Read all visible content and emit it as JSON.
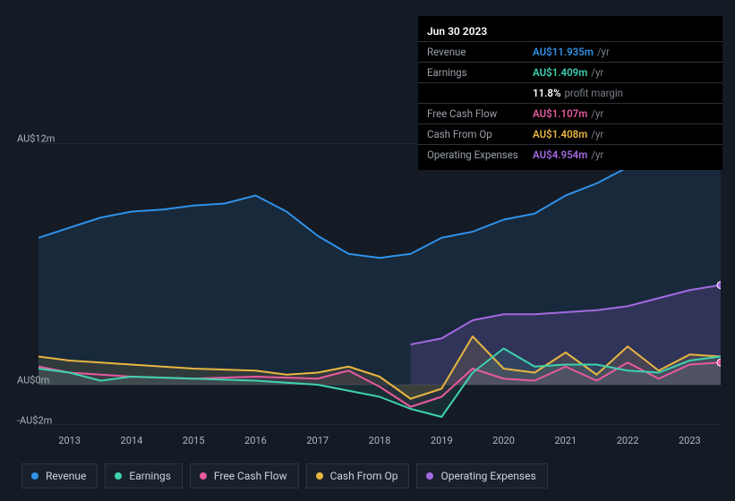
{
  "tooltip": {
    "title": "Jun 30 2023",
    "rows": [
      {
        "label": "Revenue",
        "value": "AU$11.935m",
        "suffix": "/yr",
        "color": "#2f91e8"
      },
      {
        "label": "Earnings",
        "value": "AU$1.409m",
        "suffix": "/yr",
        "color": "#3ed2b0"
      },
      {
        "label": "",
        "value": "11.8%",
        "suffix": "profit margin",
        "color": "#ffffff"
      },
      {
        "label": "Free Cash Flow",
        "value": "AU$1.107m",
        "suffix": "/yr",
        "color": "#e85aa0"
      },
      {
        "label": "Cash From Op",
        "value": "AU$1.408m",
        "suffix": "/yr",
        "color": "#e8b641"
      },
      {
        "label": "Operating Expenses",
        "value": "AU$4.954m",
        "suffix": "/yr",
        "color": "#a369e0"
      }
    ]
  },
  "chart": {
    "type": "area-line",
    "background": "#151b24",
    "grid_color": "#2a303a",
    "text_color": "#b0b5bf",
    "x_start": 2012.5,
    "x_end": 2023.5,
    "y_min": -2,
    "y_max": 12,
    "y_ticks": [
      {
        "v": 12,
        "label": "AU$12m"
      },
      {
        "v": 0,
        "label": "AU$0m"
      },
      {
        "v": -2,
        "label": "-AU$2m"
      }
    ],
    "x_ticks": [
      2013,
      2014,
      2015,
      2016,
      2017,
      2018,
      2019,
      2020,
      2021,
      2022,
      2023
    ],
    "series": [
      {
        "id": "revenue",
        "label": "Revenue",
        "color": "#2f91e8",
        "fill": "rgba(47,145,232,0.12)",
        "width": 2,
        "points": [
          [
            2012.5,
            7.3
          ],
          [
            2013,
            7.8
          ],
          [
            2013.5,
            8.3
          ],
          [
            2014,
            8.6
          ],
          [
            2014.5,
            8.7
          ],
          [
            2015,
            8.9
          ],
          [
            2015.5,
            9.0
          ],
          [
            2016,
            9.4
          ],
          [
            2016.5,
            8.6
          ],
          [
            2017,
            7.4
          ],
          [
            2017.5,
            6.5
          ],
          [
            2018,
            6.3
          ],
          [
            2018.5,
            6.5
          ],
          [
            2019,
            7.3
          ],
          [
            2019.5,
            7.6
          ],
          [
            2020,
            8.2
          ],
          [
            2020.5,
            8.5
          ],
          [
            2021,
            9.4
          ],
          [
            2021.5,
            10.0
          ],
          [
            2022,
            10.8
          ],
          [
            2022.5,
            11.3
          ],
          [
            2023,
            11.6
          ],
          [
            2023.5,
            11.9
          ]
        ]
      },
      {
        "id": "operating_expenses",
        "label": "Operating Expenses",
        "color": "#a369e0",
        "fill": "rgba(163,105,224,0.18)",
        "width": 2,
        "points": [
          [
            2018.5,
            2.0
          ],
          [
            2019,
            2.3
          ],
          [
            2019.5,
            3.2
          ],
          [
            2020,
            3.5
          ],
          [
            2020.5,
            3.5
          ],
          [
            2021,
            3.6
          ],
          [
            2021.5,
            3.7
          ],
          [
            2022,
            3.9
          ],
          [
            2022.5,
            4.3
          ],
          [
            2023,
            4.7
          ],
          [
            2023.5,
            4.95
          ]
        ]
      },
      {
        "id": "cash_from_op",
        "label": "Cash From Op",
        "color": "#e8b641",
        "fill": "rgba(232,182,65,0.12)",
        "width": 2,
        "points": [
          [
            2012.5,
            1.4
          ],
          [
            2013,
            1.2
          ],
          [
            2014,
            1.0
          ],
          [
            2015,
            0.8
          ],
          [
            2016,
            0.7
          ],
          [
            2016.5,
            0.5
          ],
          [
            2017,
            0.6
          ],
          [
            2017.5,
            0.9
          ],
          [
            2018,
            0.4
          ],
          [
            2018.5,
            -0.7
          ],
          [
            2019,
            -0.2
          ],
          [
            2019.5,
            2.4
          ],
          [
            2020,
            0.8
          ],
          [
            2020.5,
            0.6
          ],
          [
            2021,
            1.6
          ],
          [
            2021.5,
            0.5
          ],
          [
            2022,
            1.9
          ],
          [
            2022.5,
            0.7
          ],
          [
            2023,
            1.5
          ],
          [
            2023.5,
            1.4
          ]
        ]
      },
      {
        "id": "free_cash_flow",
        "label": "Free Cash Flow",
        "color": "#e85aa0",
        "fill": "rgba(232,90,160,0.08)",
        "width": 2,
        "points": [
          [
            2012.5,
            0.9
          ],
          [
            2013,
            0.6
          ],
          [
            2014,
            0.4
          ],
          [
            2015,
            0.3
          ],
          [
            2016,
            0.4
          ],
          [
            2017,
            0.3
          ],
          [
            2017.5,
            0.7
          ],
          [
            2018,
            -0.1
          ],
          [
            2018.5,
            -1.1
          ],
          [
            2019,
            -0.6
          ],
          [
            2019.5,
            0.8
          ],
          [
            2020,
            0.3
          ],
          [
            2020.5,
            0.2
          ],
          [
            2021,
            0.9
          ],
          [
            2021.5,
            0.2
          ],
          [
            2022,
            1.1
          ],
          [
            2022.5,
            0.3
          ],
          [
            2023,
            1.0
          ],
          [
            2023.5,
            1.1
          ]
        ]
      },
      {
        "id": "earnings",
        "label": "Earnings",
        "color": "#3ed2b0",
        "fill": "rgba(62,210,176,0.10)",
        "width": 2,
        "points": [
          [
            2012.5,
            0.8
          ],
          [
            2013,
            0.6
          ],
          [
            2013.5,
            0.2
          ],
          [
            2014,
            0.4
          ],
          [
            2015,
            0.3
          ],
          [
            2016,
            0.2
          ],
          [
            2016.5,
            0.1
          ],
          [
            2017,
            0.0
          ],
          [
            2017.5,
            -0.3
          ],
          [
            2018,
            -0.6
          ],
          [
            2018.5,
            -1.2
          ],
          [
            2019,
            -1.6
          ],
          [
            2019.5,
            0.6
          ],
          [
            2020,
            1.8
          ],
          [
            2020.5,
            0.9
          ],
          [
            2021,
            1.0
          ],
          [
            2021.5,
            1.0
          ],
          [
            2022,
            0.7
          ],
          [
            2022.5,
            0.6
          ],
          [
            2023,
            1.2
          ],
          [
            2023.5,
            1.4
          ]
        ]
      }
    ]
  },
  "legend": [
    {
      "id": "revenue",
      "label": "Revenue",
      "color": "#2f91e8"
    },
    {
      "id": "earnings",
      "label": "Earnings",
      "color": "#3ed2b0"
    },
    {
      "id": "free_cash_flow",
      "label": "Free Cash Flow",
      "color": "#e85aa0"
    },
    {
      "id": "cash_from_op",
      "label": "Cash From Op",
      "color": "#e8b641"
    },
    {
      "id": "operating_expenses",
      "label": "Operating Expenses",
      "color": "#a369e0"
    }
  ]
}
